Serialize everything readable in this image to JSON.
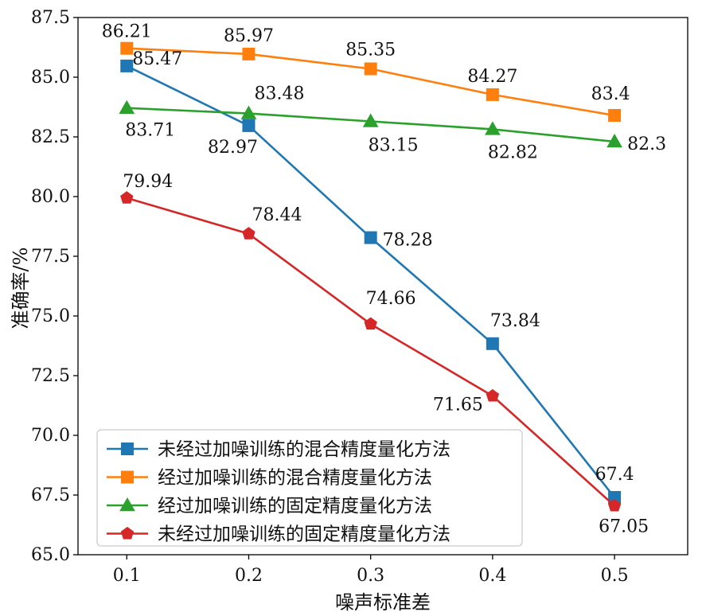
{
  "chart_data": {
    "type": "line",
    "title": "",
    "xlabel": "噪声标准差",
    "ylabel": "准确率/%",
    "x": [
      0.1,
      0.2,
      0.3,
      0.4,
      0.5
    ],
    "x_tick_labels": [
      "0.1",
      "0.2",
      "0.3",
      "0.4",
      "0.5"
    ],
    "xlim": [
      0.06,
      0.56
    ],
    "ylim": [
      65.0,
      87.5
    ],
    "y_ticks": [
      65.0,
      67.5,
      70.0,
      72.5,
      75.0,
      77.5,
      80.0,
      82.5,
      85.0,
      87.5
    ],
    "y_tick_labels": [
      "65.0",
      "67.5",
      "70.0",
      "72.5",
      "75.0",
      "77.5",
      "80.0",
      "82.5",
      "85.0",
      "87.5"
    ],
    "grid": false,
    "legend_position": "bottom-left",
    "series": [
      {
        "name": "未经过加噪训练的混合精度量化方法",
        "color": "#1f77b4",
        "marker": "square",
        "values": [
          85.47,
          82.97,
          78.28,
          73.84,
          67.4
        ],
        "labels": [
          "85.47",
          "82.97",
          "78.28",
          "73.84",
          "67.4"
        ]
      },
      {
        "name": "经过加噪训练的混合精度量化方法",
        "color": "#ff7f0e",
        "marker": "square",
        "values": [
          86.21,
          85.97,
          85.35,
          84.27,
          83.4
        ],
        "labels": [
          "86.21",
          "85.97",
          "85.35",
          "84.27",
          "83.4"
        ]
      },
      {
        "name": "经过加噪训练的固定精度量化方法",
        "color": "#2ca02c",
        "marker": "triangle",
        "values": [
          83.71,
          83.48,
          83.15,
          82.82,
          82.3
        ],
        "labels": [
          "83.71",
          "83.48",
          "83.15",
          "82.82",
          "82.3"
        ]
      },
      {
        "name": "未经过加噪训练的固定精度量化方法",
        "color": "#d62728",
        "marker": "pentagon",
        "values": [
          79.94,
          78.44,
          74.66,
          71.65,
          67.05
        ],
        "labels": [
          "79.94",
          "78.44",
          "74.66",
          "71.65",
          "67.05"
        ]
      }
    ]
  }
}
